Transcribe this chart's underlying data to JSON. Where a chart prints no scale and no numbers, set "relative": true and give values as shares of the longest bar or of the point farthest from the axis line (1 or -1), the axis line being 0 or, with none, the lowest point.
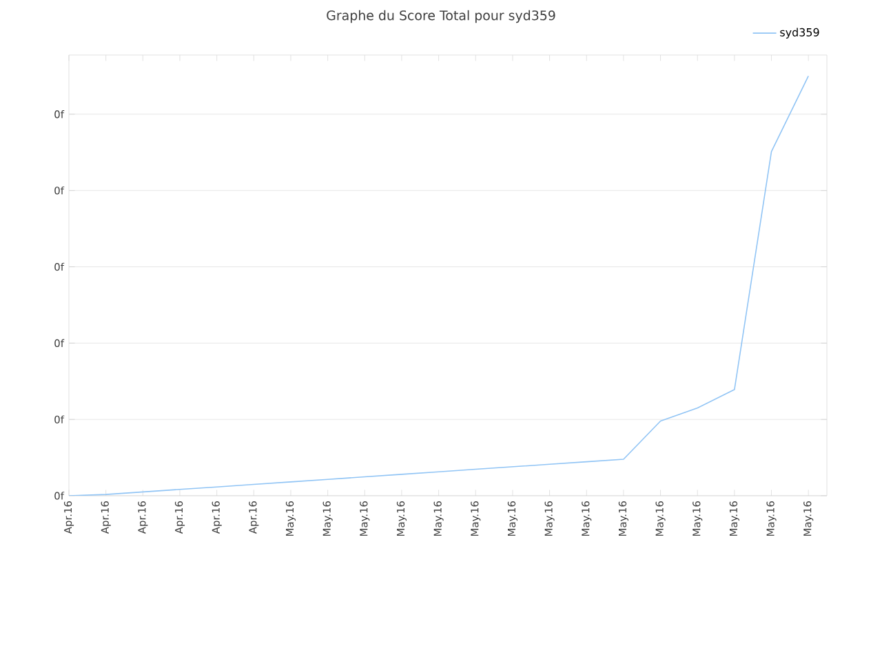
{
  "chart_data": {
    "type": "line",
    "title": "Graphe du Score Total pour syd359",
    "relative": true,
    "categories": [
      "Apr.16",
      "Apr.16",
      "Apr.16",
      "Apr.16",
      "Apr.16",
      "Apr.16",
      "May.16",
      "May.16",
      "May.16",
      "May.16",
      "May.16",
      "May.16",
      "May.16",
      "May.16",
      "May.16",
      "May.16",
      "May.16",
      "May.16",
      "May.16",
      "May.16",
      "May.16"
    ],
    "series": [
      {
        "name": "syd359",
        "color": "#90c4f5",
        "values": [
          0,
          0.003,
          0.009,
          0.015,
          0.021,
          0.027,
          0.033,
          0.039,
          0.045,
          0.051,
          0.057,
          0.063,
          0.069,
          0.075,
          0.081,
          0.087,
          0.178,
          0.209,
          0.253,
          0.82,
          1.0
        ]
      }
    ],
    "annotations": [
      "0f",
      "0f",
      "0f",
      "0f",
      "0f",
      "0f"
    ],
    "grid": "y",
    "legend": "top right",
    "marker": "none",
    "line_style": "solid"
  }
}
